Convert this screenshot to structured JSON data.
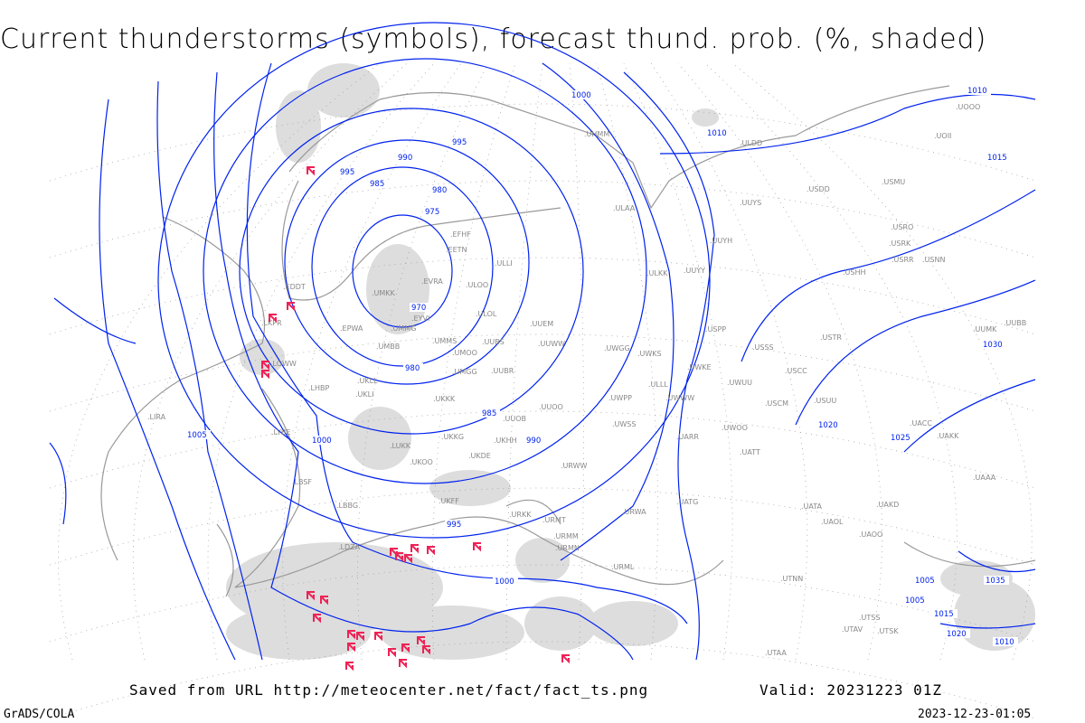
{
  "title": "Current thunderstorms (symbols), forecast thund. prob. (%, shaded)",
  "footer": {
    "source": "Saved from URL http://meteocenter.net/fact/fact_ts.png",
    "valid": "Valid: 20231223 01Z",
    "software": "GrADS/COLA",
    "timestamp": "2023-12-23-01:05"
  },
  "colors": {
    "isobar": "#0022ee",
    "coastline": "#999999",
    "shading": "#dddddd",
    "thunderstorm_symbol": "#ee2255"
  },
  "isobar_labels": [
    "970",
    "975",
    "980",
    "985",
    "990",
    "995",
    "980",
    "985",
    "990",
    "995",
    "1000",
    "1005",
    "1010",
    "1015",
    "1020",
    "1025",
    "1030",
    "1000",
    "1005",
    "1010",
    "1015",
    "1020",
    "1010",
    "1005",
    "1000",
    "995",
    "1035"
  ],
  "stations": [
    "EFHF",
    "EETN",
    "ULLI",
    "EVRA",
    "ULOO",
    "UMKK",
    "EYVI",
    "ULOL",
    "UUEM",
    "UMMG",
    "EPWA",
    "UMMS",
    "UMOO",
    "UUBS",
    "UUWW",
    "UMBB",
    "UKLL",
    "UKLI",
    "UMGG",
    "UUBR",
    "UKKK",
    "UUOB",
    "UUOO",
    "UKHH",
    "UKKG",
    "UKDE",
    "LUKK",
    "UKOO",
    "URWW",
    "UKFF",
    "URKK",
    "URMT",
    "URMM",
    "URMN",
    "URML",
    "LBBG",
    "LBSF",
    "LYBE",
    "LHBP",
    "LKPR",
    "EDDT",
    "LDZA",
    "LIRA",
    "LOWW",
    "UWGG",
    "UWPP",
    "UWKS",
    "UWSS",
    "URWA",
    "UATG",
    "UATT",
    "UWKE",
    "UWUU",
    "UWWW",
    "UARR",
    "USSS",
    "USCC",
    "USCM",
    "USTR",
    "UACC",
    "UAKK",
    "UAAA",
    "UAKD",
    "UATA",
    "UAOL",
    "UAOO",
    "ULAA",
    "ULLL",
    "ULKK",
    "UUYY",
    "UUYH",
    "UUYS",
    "UUBB",
    "UWOO",
    "USPP",
    "USUU",
    "USRR",
    "USRK",
    "USRO",
    "USMU",
    "USHH",
    "USNN",
    "UHMM",
    "ULDD",
    "UOII",
    "UOOO",
    "UTSS",
    "UTAV",
    "UTSK",
    "UTNN",
    "UTAA",
    "USDD",
    "UUMK"
  ]
}
